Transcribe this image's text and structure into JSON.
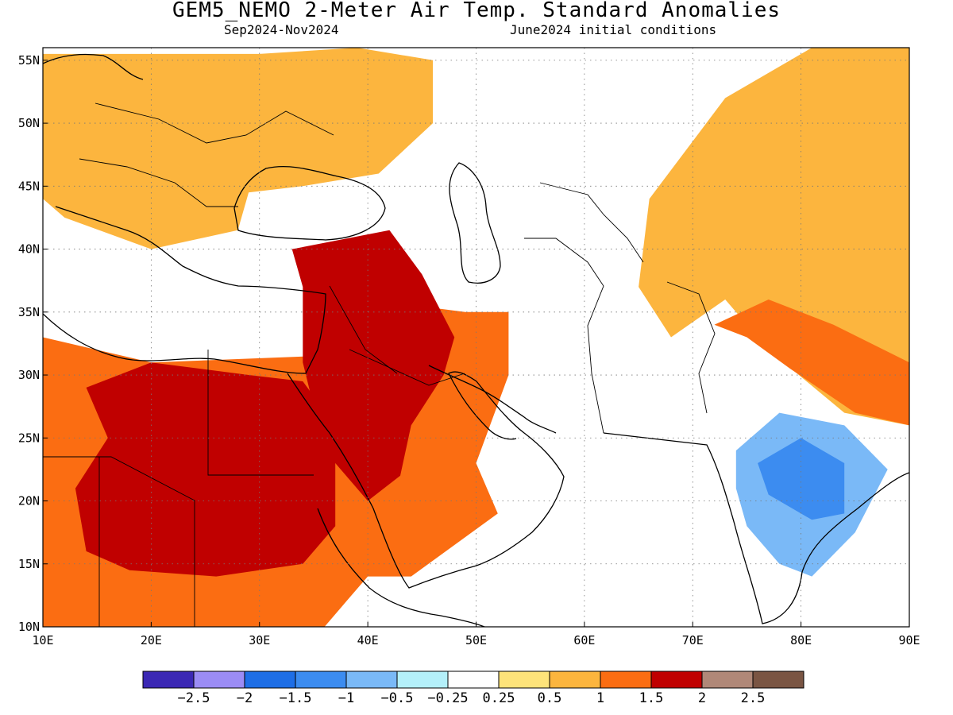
{
  "title": "GEM5_NEMO 2-Meter Air Temp. Standard Anomalies",
  "subtitle_left": "Sep2024-Nov2024",
  "subtitle_right": "June2024 initial conditions",
  "map": {
    "lon_range": [
      10,
      90
    ],
    "lat_range": [
      10,
      56
    ],
    "x_ticks": [
      {
        "value": 10,
        "label": "10E"
      },
      {
        "value": 20,
        "label": "20E"
      },
      {
        "value": 30,
        "label": "30E"
      },
      {
        "value": 40,
        "label": "40E"
      },
      {
        "value": 50,
        "label": "50E"
      },
      {
        "value": 60,
        "label": "60E"
      },
      {
        "value": 70,
        "label": "70E"
      },
      {
        "value": 80,
        "label": "80E"
      },
      {
        "value": 90,
        "label": "90E"
      }
    ],
    "y_ticks": [
      {
        "value": 10,
        "label": "10N"
      },
      {
        "value": 15,
        "label": "15N"
      },
      {
        "value": 20,
        "label": "20N"
      },
      {
        "value": 25,
        "label": "25N"
      },
      {
        "value": 30,
        "label": "30N"
      },
      {
        "value": 35,
        "label": "35N"
      },
      {
        "value": 40,
        "label": "40N"
      },
      {
        "value": 45,
        "label": "45N"
      },
      {
        "value": 50,
        "label": "50N"
      },
      {
        "value": 55,
        "label": "55N"
      }
    ],
    "grid": "dotted"
  },
  "anomaly_regions": [
    {
      "name": "europe-warm",
      "color": "#fcb53e",
      "points": [
        [
          10,
          55.5
        ],
        [
          30,
          55.5
        ],
        [
          39,
          56
        ],
        [
          46,
          55
        ],
        [
          46,
          50
        ],
        [
          41,
          46
        ],
        [
          34,
          45
        ],
        [
          29,
          44.5
        ],
        [
          28,
          41.5
        ],
        [
          20,
          40
        ],
        [
          12,
          42.5
        ],
        [
          10,
          44
        ]
      ]
    },
    {
      "name": "north-africa-warm",
      "color": "#fb6d12",
      "points": [
        [
          10,
          33
        ],
        [
          20,
          31
        ],
        [
          35,
          31.5
        ],
        [
          40,
          36
        ],
        [
          49,
          35
        ],
        [
          53,
          35
        ],
        [
          53,
          30
        ],
        [
          50,
          23
        ],
        [
          52,
          19
        ],
        [
          44,
          14
        ],
        [
          40,
          14
        ],
        [
          38,
          12
        ],
        [
          36,
          10
        ],
        [
          10,
          10
        ]
      ]
    },
    {
      "name": "central-asia-warm",
      "color": "#fcb53e",
      "points": [
        [
          66,
          44
        ],
        [
          73,
          52
        ],
        [
          81,
          56
        ],
        [
          90,
          56
        ],
        [
          90,
          26
        ],
        [
          84,
          27
        ],
        [
          77,
          32
        ],
        [
          73,
          36
        ],
        [
          68,
          33
        ],
        [
          65,
          37
        ]
      ]
    },
    {
      "name": "himalaya-warm",
      "color": "#fb6d12",
      "points": [
        [
          72,
          34
        ],
        [
          77,
          36
        ],
        [
          83,
          34
        ],
        [
          90,
          31
        ],
        [
          90,
          26
        ],
        [
          85,
          27
        ],
        [
          79,
          30.5
        ],
        [
          75,
          33
        ]
      ]
    },
    {
      "name": "sahara-hot",
      "color": "#c00000",
      "points": [
        [
          14,
          29
        ],
        [
          20,
          31
        ],
        [
          29,
          30
        ],
        [
          34,
          29.5
        ],
        [
          37,
          26
        ],
        [
          37,
          18
        ],
        [
          34,
          15
        ],
        [
          26,
          14
        ],
        [
          18,
          14.5
        ],
        [
          14,
          16
        ],
        [
          13,
          21
        ],
        [
          16,
          25
        ]
      ]
    },
    {
      "name": "levant-hot",
      "color": "#c00000",
      "points": [
        [
          33,
          40
        ],
        [
          42,
          41.5
        ],
        [
          45,
          38
        ],
        [
          48,
          33
        ],
        [
          47,
          30
        ],
        [
          44,
          26
        ],
        [
          43,
          22
        ],
        [
          40,
          20
        ],
        [
          36,
          24
        ],
        [
          34,
          31
        ],
        [
          34,
          37
        ]
      ]
    },
    {
      "name": "india-cool",
      "color": "#7ab9f7",
      "points": [
        [
          74,
          24
        ],
        [
          78,
          27
        ],
        [
          84,
          26
        ],
        [
          88,
          22.5
        ],
        [
          85,
          17.5
        ],
        [
          81,
          14
        ],
        [
          78,
          15
        ],
        [
          75,
          18
        ],
        [
          74,
          21
        ]
      ]
    },
    {
      "name": "india-cooler",
      "color": "#3c8cf0",
      "points": [
        [
          76,
          23
        ],
        [
          80,
          25
        ],
        [
          84,
          23
        ],
        [
          84,
          19
        ],
        [
          81,
          18.5
        ],
        [
          77,
          20.5
        ]
      ]
    }
  ],
  "colorbar": {
    "colors": [
      "#3b28b4",
      "#9b8cf5",
      "#1e6ee6",
      "#3c8cf0",
      "#7ab9f7",
      "#b4f0fa",
      "#ffffff",
      "#fde37a",
      "#fcb53e",
      "#fb6d12",
      "#c00000",
      "#b08878",
      "#7a5543"
    ],
    "labels": [
      "−2.5",
      "−2",
      "−1.5",
      "−1",
      "−0.5",
      "−0.25",
      "0.25",
      "0.5",
      "1",
      "1.5",
      "2",
      "2.5"
    ]
  }
}
